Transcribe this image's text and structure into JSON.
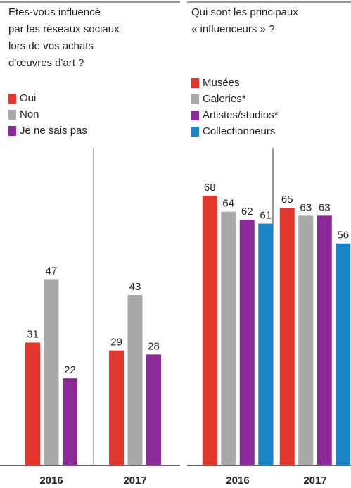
{
  "chart_data": [
    {
      "type": "bar",
      "title": [
        "Etes-vous influencé",
        "par les réseaux sociaux",
        "lors de vos achats",
        "d'œuvres d'art ?"
      ],
      "categories": [
        "2016",
        "2017"
      ],
      "series": [
        {
          "name": "Oui",
          "color": "#e2372f",
          "values": [
            31,
            29
          ]
        },
        {
          "name": "Non",
          "color": "#a9a9a9",
          "values": [
            47,
            43
          ]
        },
        {
          "name": "Je ne sais pas",
          "color": "#8b2a98",
          "values": [
            22,
            28
          ]
        }
      ]
    },
    {
      "type": "bar",
      "title": [
        "Qui sont les principaux",
        "« influenceurs » ?"
      ],
      "categories": [
        "2016",
        "2017"
      ],
      "series": [
        {
          "name": "Musées",
          "color": "#e2372f",
          "values": [
            68,
            65
          ]
        },
        {
          "name": "Galeries*",
          "color": "#a9a9a9",
          "values": [
            64,
            63
          ]
        },
        {
          "name": "Artistes/studios*",
          "color": "#8b2a98",
          "values": [
            62,
            63
          ]
        },
        {
          "name": "Collectionneurs",
          "color": "#1a84c7",
          "values": [
            61,
            56
          ]
        }
      ]
    }
  ]
}
